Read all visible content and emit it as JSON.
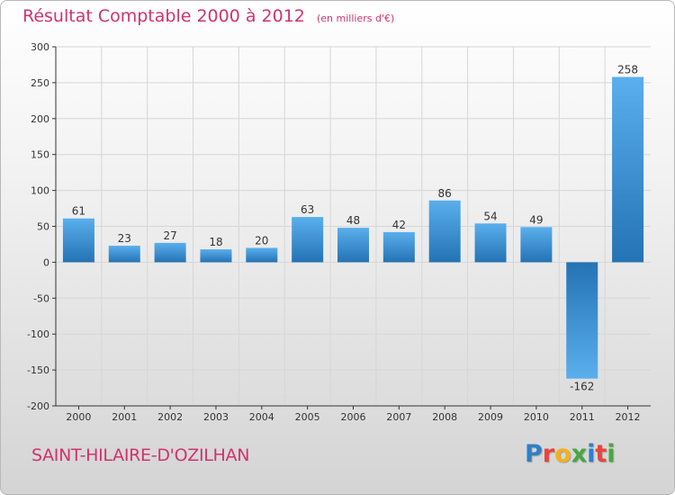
{
  "header": {
    "title": "Résultat Comptable 2000 à 2012",
    "subtitle": "(en milliers d'€)"
  },
  "footer": {
    "commune": "SAINT-HILAIRE-D'OZILHAN",
    "logo_text": "Proxiti",
    "logo_colors": [
      "#2f7fc7",
      "#e8453c",
      "#f2b21b",
      "#49a644",
      "#2f7fc7",
      "#e8453c",
      "#49a644"
    ]
  },
  "colors": {
    "bar_light": "#5aafec",
    "bar_dark": "#2473b5",
    "axis": "#333333",
    "grid": "#d6d6d6",
    "text": "#333333",
    "title": "#d0336e"
  },
  "chart_data": {
    "type": "bar",
    "categories": [
      "2000",
      "2001",
      "2002",
      "2003",
      "2004",
      "2005",
      "2006",
      "2007",
      "2008",
      "2009",
      "2010",
      "2011",
      "2012"
    ],
    "values": [
      61,
      23,
      27,
      18,
      20,
      63,
      48,
      42,
      86,
      54,
      49,
      -162,
      258
    ],
    "data_labels": [
      "61",
      "23",
      "27",
      "18",
      "20",
      "63",
      "48",
      "42",
      "86",
      "54",
      "49",
      "-162",
      "258"
    ],
    "ylim": [
      -200,
      300
    ],
    "yticks": [
      300,
      250,
      200,
      150,
      100,
      50,
      0,
      -50,
      -100,
      -150,
      -200
    ],
    "ytick_labels": [
      "300",
      "250",
      "200",
      "150",
      "100",
      "50",
      "0",
      "-50",
      "-100",
      "-150",
      "-200"
    ],
    "grid": true,
    "legend": "none",
    "xlabel": "",
    "ylabel": ""
  }
}
